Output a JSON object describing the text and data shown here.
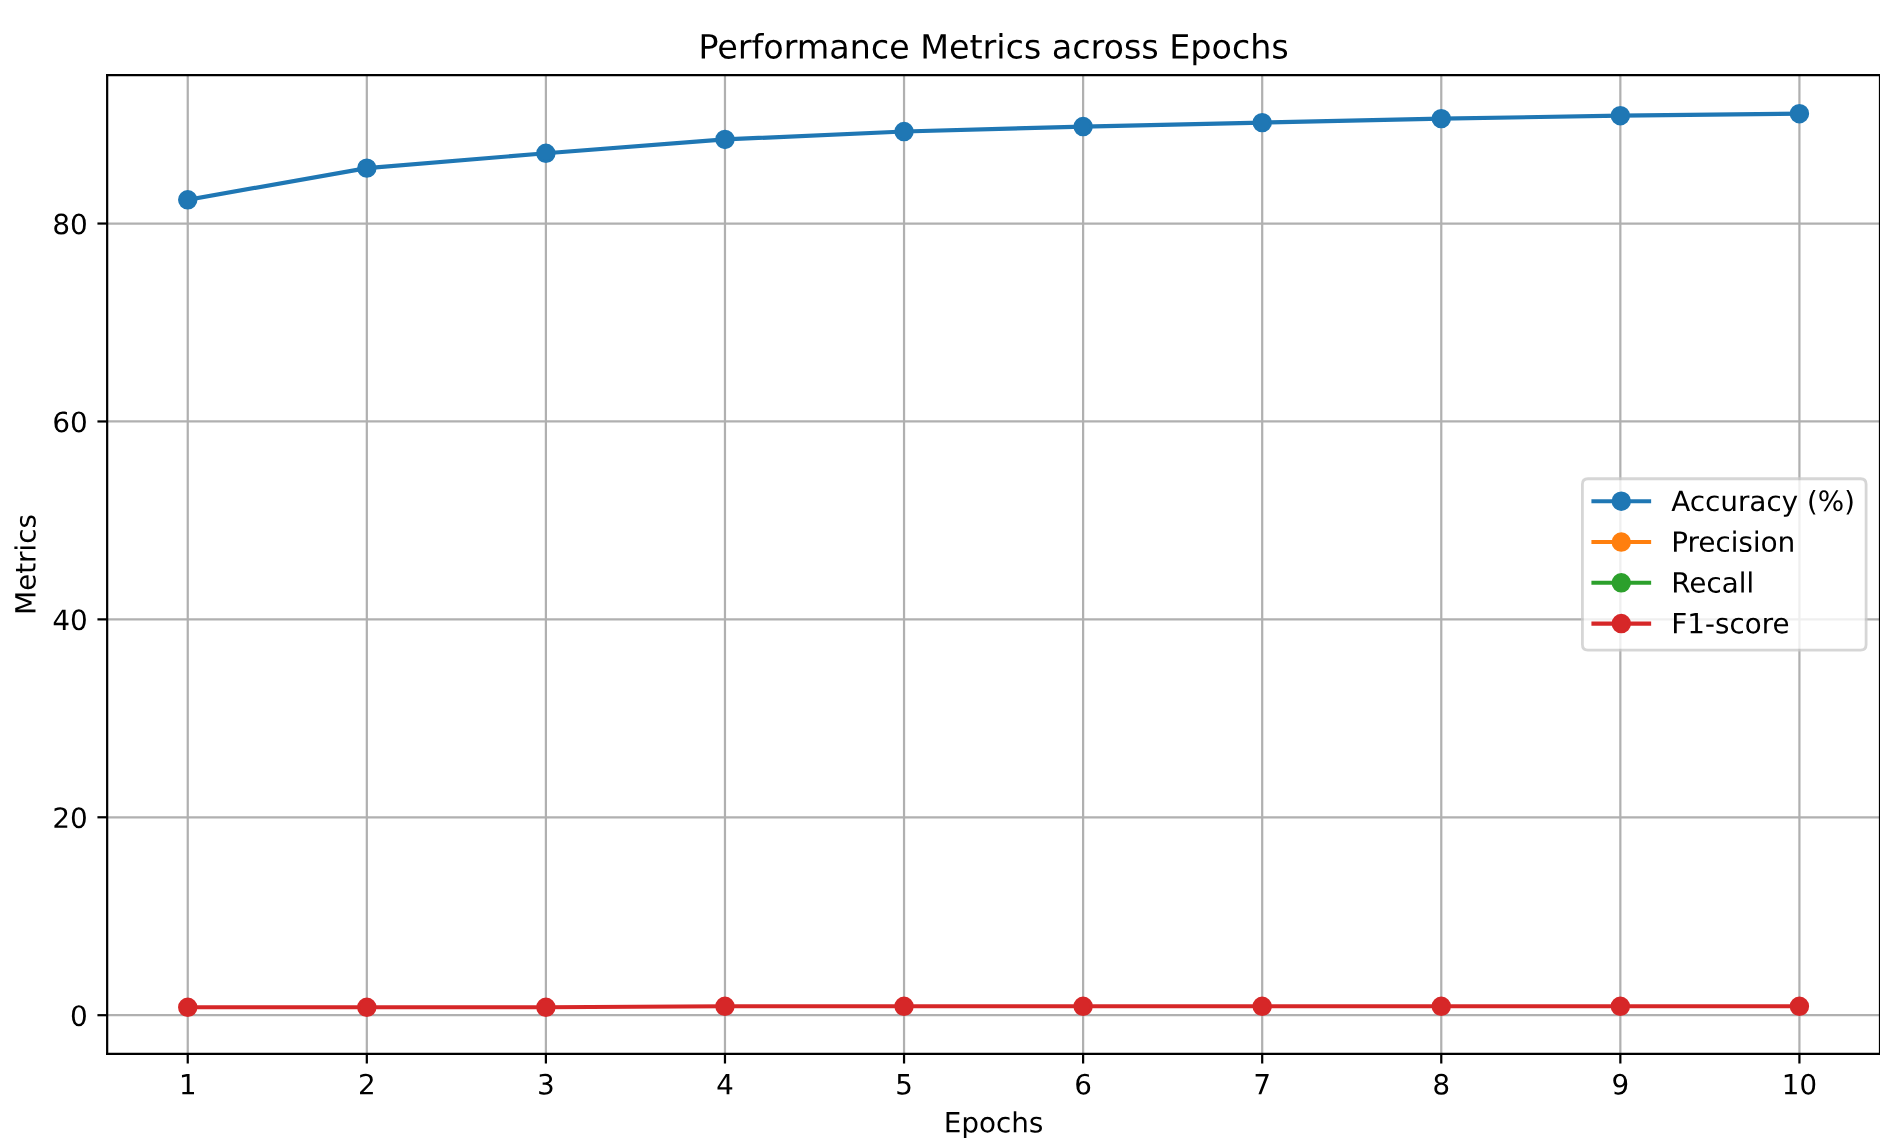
{
  "chart_data": {
    "type": "line",
    "title": "Performance Metrics across Epochs",
    "xlabel": "Epochs",
    "ylabel": "Metrics",
    "x": [
      1,
      2,
      3,
      4,
      5,
      6,
      7,
      8,
      9,
      10
    ],
    "series": [
      {
        "name": "Accuracy (%)",
        "color": "#1f77b4",
        "values": [
          82.4,
          85.6,
          87.1,
          88.5,
          89.3,
          89.8,
          90.2,
          90.6,
          90.9,
          91.1
        ]
      },
      {
        "name": "Precision",
        "color": "#ff7f0e",
        "values": [
          null,
          null,
          null,
          null,
          null,
          null,
          null,
          null,
          null,
          null
        ]
      },
      {
        "name": "Recall",
        "color": "#2ca02c",
        "values": [
          null,
          null,
          null,
          null,
          null,
          null,
          null,
          null,
          null,
          null
        ]
      },
      {
        "name": "F1-score",
        "color": "#d62728",
        "values": [
          0.8,
          0.8,
          0.8,
          0.9,
          0.9,
          0.9,
          0.9,
          0.9,
          0.9,
          0.9
        ]
      }
    ],
    "xlim": [
      0.55,
      10.45
    ],
    "xticks": [
      1,
      2,
      3,
      4,
      5,
      6,
      7,
      8,
      9,
      10
    ],
    "ylim": [
      -3.9,
      95
    ],
    "yticks": [
      0,
      20,
      40,
      60,
      80
    ],
    "grid": true,
    "legend": "right",
    "marker": "circle",
    "line_style": "solid"
  }
}
